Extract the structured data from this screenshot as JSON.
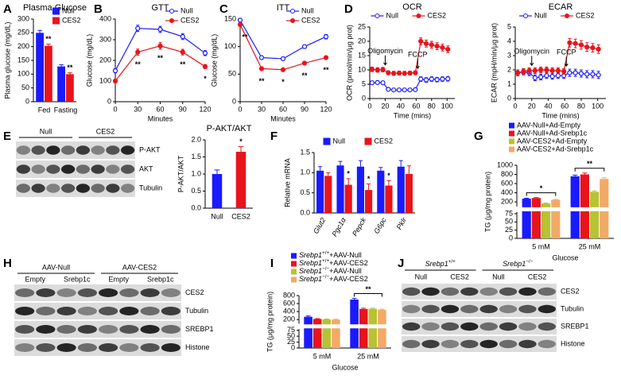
{
  "chart_data": [
    {
      "type": "bar",
      "panel": "A",
      "title": "Plasma Glucose",
      "title_color": "#1a3fe0",
      "ylabel": "Plasma glucose (mg/dL)",
      "categories": [
        "Fed",
        "Fasting"
      ],
      "series": [
        {
          "name": "Null",
          "color": "#1a1aff",
          "values": [
            250,
            128
          ],
          "errors": [
            9,
            6
          ]
        },
        {
          "name": "CES2",
          "color": "#e8141c",
          "values": [
            203,
            100
          ],
          "errors": [
            6,
            5
          ],
          "stars": [
            "**",
            "**"
          ]
        }
      ],
      "ylim": [
        0,
        300
      ],
      "yticks": [
        0,
        50,
        100,
        150,
        200,
        250,
        300
      ],
      "legend": "upper right"
    },
    {
      "type": "line",
      "panel": "B",
      "title": "GTT",
      "title_color": "#1a3fe0",
      "xlabel": "Minutes",
      "ylabel": "Glucose (mg/dL)",
      "x": [
        0,
        30,
        60,
        90,
        120
      ],
      "series": [
        {
          "name": "Null",
          "color": "#1a1aff",
          "marker": "open",
          "values": [
            150,
            355,
            350,
            315,
            235
          ],
          "errors": [
            10,
            15,
            15,
            14,
            12
          ]
        },
        {
          "name": "CES2",
          "color": "#e8141c",
          "marker": "filled",
          "values": [
            100,
            240,
            270,
            240,
            170
          ],
          "errors": [
            6,
            15,
            16,
            14,
            10
          ],
          "stars": [
            null,
            "**",
            "**",
            "**",
            "*"
          ]
        }
      ],
      "xlim": [
        0,
        120
      ],
      "xticks": [
        0,
        30,
        60,
        90,
        120
      ],
      "ylim": [
        0,
        400
      ],
      "yticks": [
        0,
        100,
        200,
        300,
        400
      ],
      "legend": "upper right"
    },
    {
      "type": "line",
      "panel": "C",
      "title": "ITT",
      "title_color": "#1a3fe0",
      "xlabel": "Minutes",
      "ylabel": "Glucose (mg/dL)",
      "x": [
        0,
        30,
        60,
        90,
        120
      ],
      "series": [
        {
          "name": "Null",
          "color": "#1a1aff",
          "marker": "open",
          "values": [
            148,
            80,
            78,
            100,
            118
          ],
          "errors": [
            3,
            3,
            3,
            3,
            4
          ]
        },
        {
          "name": "CES2",
          "color": "#e8141c",
          "marker": "filled",
          "values": [
            140,
            60,
            58,
            70,
            80
          ],
          "errors": [
            3,
            2,
            2,
            2,
            3
          ],
          "stars": [
            "**",
            "**",
            "*",
            "**",
            "**"
          ]
        }
      ],
      "xlim": [
        0,
        120
      ],
      "xticks": [
        0,
        30,
        60,
        90,
        120
      ],
      "ylim": [
        0,
        150
      ],
      "yticks": [
        0,
        50,
        100,
        150
      ],
      "legend": "upper right"
    },
    {
      "type": "line",
      "panel": "D",
      "title": "OCR",
      "title_color": "#1a3fe0",
      "xlabel": "Time (mins)",
      "ylabel": "OCR (pmol/min/μg prot)",
      "x": [
        3,
        10,
        17,
        24,
        31,
        38,
        45,
        52,
        59,
        66,
        73,
        80,
        87,
        94,
        101
      ],
      "series": [
        {
          "name": "Null",
          "color": "#1a1aff",
          "marker": "open",
          "values": [
            5.5,
            5.6,
            5.5,
            3.2,
            3.0,
            3.0,
            3.0,
            3.0,
            3.1,
            6.8,
            6.5,
            6.8,
            6.6,
            6.8,
            6.9
          ],
          "errors": [
            0.6,
            0.6,
            0.6,
            0.4,
            0.4,
            0.4,
            0.4,
            0.4,
            0.4,
            0.8,
            0.8,
            0.8,
            0.8,
            0.8,
            0.8
          ]
        },
        {
          "name": "CES2",
          "color": "#e8141c",
          "marker": "filled",
          "values": [
            10.2,
            10.0,
            10.1,
            9.0,
            8.8,
            8.9,
            8.8,
            8.9,
            9.0,
            20.0,
            19.2,
            18.8,
            18.3,
            17.8,
            17.2
          ],
          "errors": [
            0.8,
            0.8,
            0.8,
            0.7,
            0.7,
            0.7,
            0.7,
            0.7,
            0.7,
            1.2,
            1.2,
            1.2,
            1.2,
            1.2,
            1.2
          ]
        }
      ],
      "annotations": [
        {
          "text": "Oligomycin",
          "x": 20
        },
        {
          "text": "FCCP",
          "x": 62
        }
      ],
      "xlim": [
        0,
        110
      ],
      "xticks": [
        0,
        20,
        40,
        60,
        80,
        100
      ],
      "ylim": [
        0,
        25
      ],
      "yticks": [
        0,
        5,
        10,
        15,
        20,
        25
      ],
      "legend": "top"
    },
    {
      "type": "line",
      "title": "ECAR",
      "title_color": "#1a3fe0",
      "xlabel": "Time (mins)",
      "ylabel": "ECAR (mpH/min/μg prot)",
      "x": [
        3,
        10,
        17,
        24,
        31,
        38,
        45,
        52,
        59,
        66,
        73,
        80,
        87,
        94,
        101
      ],
      "series": [
        {
          "name": "Null",
          "color": "#1a1aff",
          "marker": "open",
          "values": [
            1.8,
            1.85,
            1.8,
            1.45,
            1.5,
            1.6,
            1.55,
            1.6,
            1.6,
            1.8,
            1.8,
            1.75,
            1.7,
            1.7,
            1.65
          ],
          "errors": [
            0.2,
            0.2,
            0.2,
            0.2,
            0.2,
            0.2,
            0.2,
            0.2,
            0.2,
            0.25,
            0.25,
            0.25,
            0.25,
            0.25,
            0.25
          ]
        },
        {
          "name": "CES2",
          "color": "#e8141c",
          "marker": "filled",
          "values": [
            1.8,
            1.9,
            1.95,
            1.95,
            2.0,
            2.0,
            1.95,
            1.95,
            1.9,
            3.9,
            3.85,
            3.75,
            3.6,
            3.55,
            3.45
          ],
          "errors": [
            0.2,
            0.2,
            0.2,
            0.2,
            0.2,
            0.2,
            0.2,
            0.2,
            0.2,
            0.3,
            0.3,
            0.3,
            0.3,
            0.3,
            0.3
          ]
        }
      ],
      "annotations": [
        {
          "text": "Oligomycin",
          "x": 20
        },
        {
          "text": "FCCP",
          "x": 62
        }
      ],
      "xlim": [
        0,
        110
      ],
      "xticks": [
        0,
        20,
        40,
        60,
        80,
        100
      ],
      "ylim": [
        0,
        5
      ],
      "yticks": [
        0,
        1,
        2,
        3,
        4,
        5
      ],
      "legend": "top"
    },
    {
      "type": "bar",
      "title": "P-AKT/AKT",
      "title_color": "#1a3fe0",
      "ylabel": "P-AKT/AKT",
      "categories": [
        "Null",
        "CES2"
      ],
      "series": [
        {
          "colors": [
            "#1a1aff",
            "#e8141c"
          ],
          "values": [
            1.0,
            1.65
          ],
          "errors": [
            0.12,
            0.15
          ],
          "stars": [
            null,
            "*"
          ]
        }
      ],
      "ylim": [
        0,
        2
      ],
      "yticks": [
        {
          "value": 0,
          "label": "0.0"
        },
        0.5,
        {
          "value": 1,
          "label": "1.0"
        },
        1.5,
        {
          "value": 2,
          "label": "2.0"
        }
      ]
    },
    {
      "type": "bar",
      "panel": "F",
      "ylabel": "Relative mRNA",
      "categories": [
        "Glut2",
        "Pgc1α",
        "Pepck",
        "G6pc",
        "Pklr"
      ],
      "series": [
        {
          "name": "Null",
          "color": "#1a1aff",
          "values": [
            1.05,
            1.18,
            1.15,
            1.05,
            1.15
          ],
          "errors": [
            0.1,
            0.1,
            0.15,
            0.08,
            0.15
          ]
        },
        {
          "name": "CES2",
          "color": "#e8141c",
          "values": [
            0.92,
            0.7,
            0.57,
            0.68,
            0.97
          ],
          "errors": [
            0.08,
            0.15,
            0.15,
            0.12,
            0.2
          ],
          "stars": [
            null,
            "*",
            "*",
            "*",
            null
          ]
        }
      ],
      "ylim": [
        0,
        1.5
      ],
      "yticks": [
        {
          "value": 0,
          "label": "0.0"
        },
        0.5,
        {
          "value": 1,
          "label": "1.0"
        },
        1.5
      ],
      "legend": "top"
    },
    {
      "type": "bar",
      "panel": "G",
      "xlabel": "Glucose",
      "ylabel": "TG (μg/mg protein)",
      "categories": [
        "5 mM",
        "25 mM"
      ],
      "series": [
        {
          "name": "AAV-Null+Ad-Empty",
          "color": "#1a1aff",
          "values": [
            270,
            760
          ],
          "errors": [
            10,
            25
          ]
        },
        {
          "name": "AAV-Null+Ad-Srebp1c",
          "color": "#e8141c",
          "values": [
            285,
            800
          ],
          "errors": [
            10,
            30
          ]
        },
        {
          "name": "AAV-CES2+Ad-Empty",
          "color": "#b8c232",
          "values": [
            165,
            420
          ],
          "errors": [
            8,
            20
          ]
        },
        {
          "name": "AAV-CES2+Ad-Srebp1c",
          "color": "#f2aa66",
          "values": [
            245,
            700
          ],
          "errors": [
            10,
            25
          ]
        }
      ],
      "group_stars": [
        "*",
        "**"
      ],
      "ylim": [
        0,
        1000
      ],
      "ysegments": [
        [
          0,
          80
        ],
        [
          100,
          1000
        ]
      ],
      "yticks": [
        0,
        25,
        50,
        75,
        200,
        400,
        600,
        800,
        1000
      ],
      "legend": "top"
    },
    {
      "type": "bar",
      "panel": "I",
      "xlabel": "Glucose",
      "ylabel": "TG (μg/mg protein)",
      "categories": [
        "5 mM",
        "25 mM"
      ],
      "series": [
        {
          "name": "Srebp1+/++AAV-Null",
          "color": "#1a1aff",
          "values": [
            270,
            700
          ],
          "errors": [
            20,
            30
          ]
        },
        {
          "name": "Srebp1+/++AAV-CES2",
          "color": "#e8141c",
          "values": [
            215,
            465
          ],
          "errors": [
            8,
            20
          ]
        },
        {
          "name": "Srebp1−/−+AAV-Null",
          "color": "#b8c232",
          "values": [
            205,
            470
          ],
          "errors": [
            8,
            15
          ]
        },
        {
          "name": "Srebp1−/−+AAV-CES2",
          "color": "#f2aa66",
          "values": [
            200,
            445
          ],
          "errors": [
            8,
            15
          ]
        }
      ],
      "group_stars": [
        null,
        "**"
      ],
      "ylim": [
        0,
        800
      ],
      "ysegments": [
        [
          0,
          80
        ],
        [
          100,
          800
        ]
      ],
      "yticks": [
        0,
        25,
        50,
        75,
        200,
        400,
        600,
        800
      ],
      "legend": "top"
    }
  ],
  "blots": [
    {
      "panel": "E",
      "groups": [
        "Null",
        "CES2"
      ],
      "rows": [
        "P-AKT",
        "AKT",
        "Tubulin"
      ]
    },
    {
      "panel": "H",
      "groups": [
        "AAV-Null",
        "AAV-CES2"
      ],
      "subgroups": [
        "Empty",
        "Srebp1c",
        "Empty",
        "Srebp1c"
      ],
      "rows": [
        "CES2",
        "Tubulin",
        "SREBP1",
        "Histone"
      ]
    },
    {
      "panel": "J",
      "groups": [
        "Srebp1+/+",
        "Srebp1−/−"
      ],
      "subgroups": [
        "Null",
        "CES2",
        "Null",
        "CES2"
      ],
      "rows": [
        "CES2",
        "Tubulin",
        "SREBP1",
        "Histone"
      ]
    }
  ]
}
